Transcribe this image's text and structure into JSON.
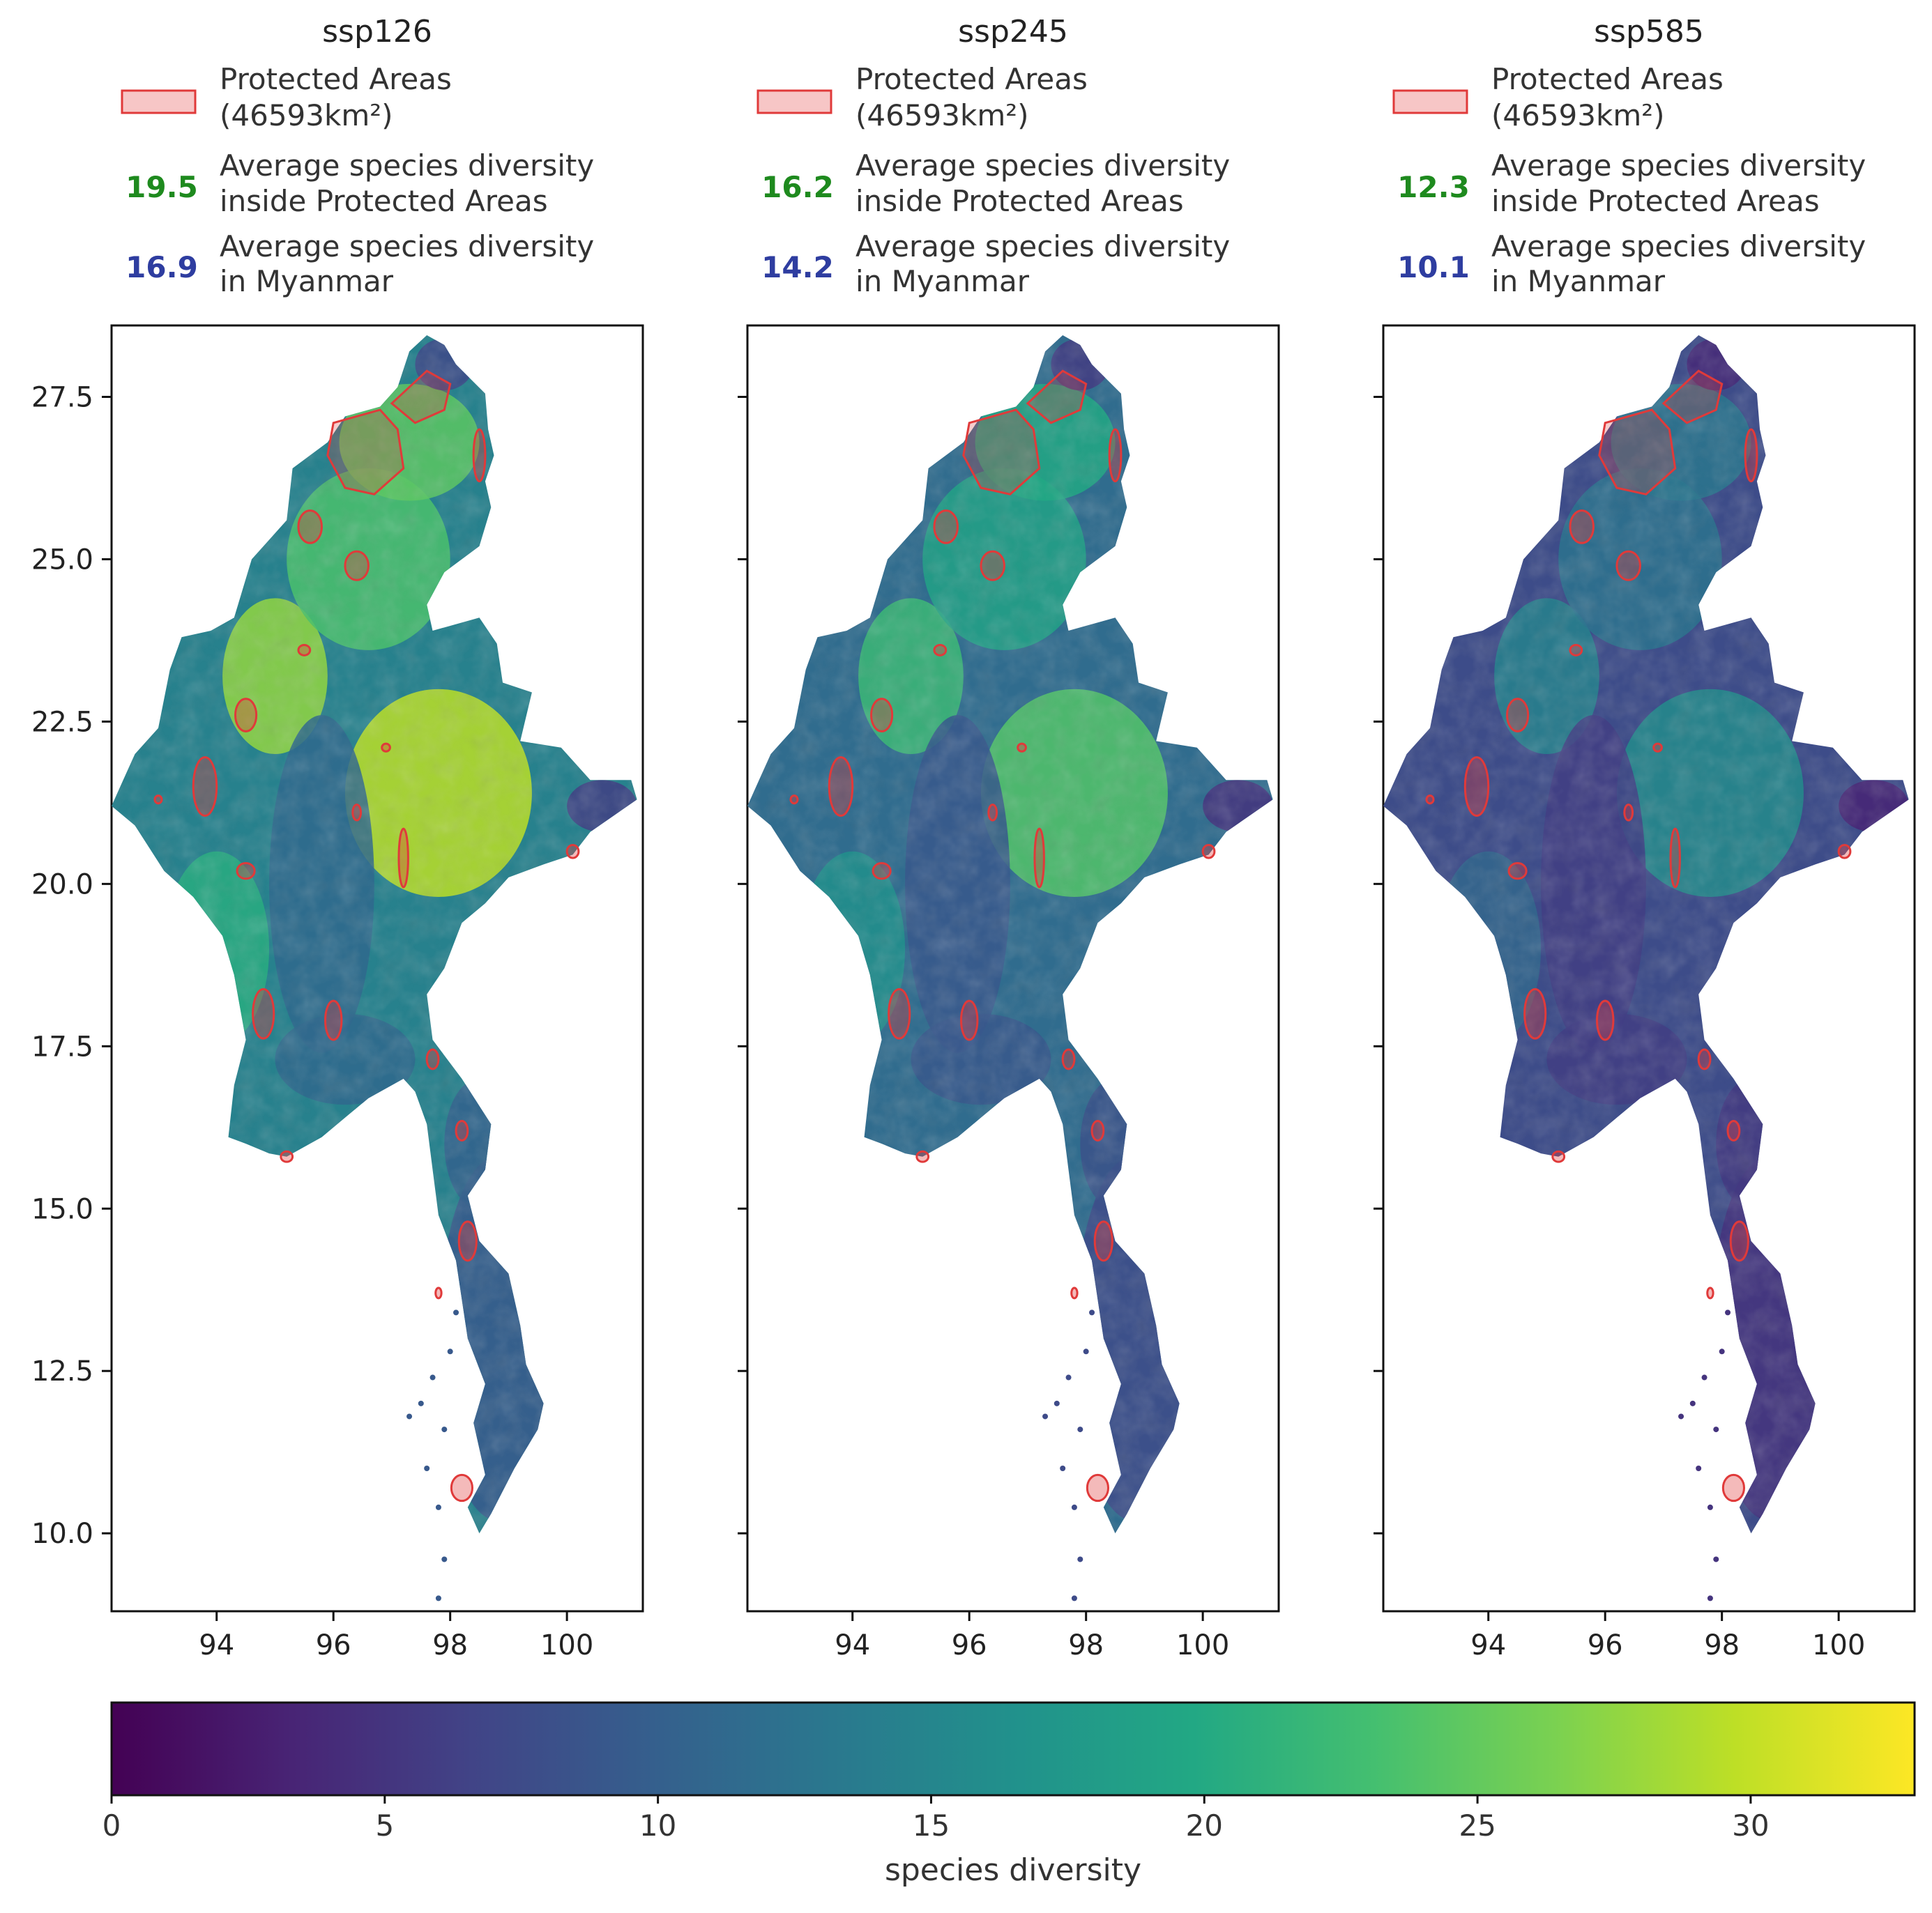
{
  "figure": {
    "colorbar": {
      "label": "species diversity",
      "min": 0,
      "max": 33,
      "ticks": [
        "0",
        "5",
        "10",
        "15",
        "20",
        "25",
        "30"
      ],
      "tick_values": [
        0,
        5,
        10,
        15,
        20,
        25,
        30
      ],
      "colormap": "viridis"
    },
    "axes": {
      "y_ticks": [
        "27.5",
        "25.0",
        "22.5",
        "20.0",
        "17.5",
        "15.0",
        "12.5",
        "10.0"
      ],
      "y_tick_values": [
        27.5,
        25.0,
        22.5,
        20.0,
        17.5,
        15.0,
        12.5,
        10.0
      ],
      "x_ticks": [
        "94",
        "96",
        "98",
        "100"
      ],
      "x_tick_values": [
        94,
        96,
        98,
        100
      ],
      "lon_range": [
        92.2,
        101.3
      ],
      "lat_range": [
        8.8,
        28.6
      ]
    },
    "legend_common": {
      "protected_label_line1": "Protected Areas",
      "protected_label_line2": "(46593km²)",
      "inside_label_line1": "Average species diversity",
      "inside_label_line2": "inside Protected Areas",
      "country_label_line1": "Average species diversity",
      "country_label_line2": "in Myanmar"
    },
    "colors": {
      "inside_value": "#1e8a1e",
      "country_value": "#2e3da0",
      "protected_edge": "#e03a3a",
      "protected_fill": "#f7c6c6"
    },
    "panels": [
      {
        "title": "ssp126",
        "inside_value": "19.5",
        "country_value": "16.9",
        "level": 0.62
      },
      {
        "title": "ssp245",
        "inside_value": "16.2",
        "country_value": "14.2",
        "level": 0.5
      },
      {
        "title": "ssp585",
        "inside_value": "12.3",
        "country_value": "10.1",
        "level": 0.33
      }
    ]
  }
}
